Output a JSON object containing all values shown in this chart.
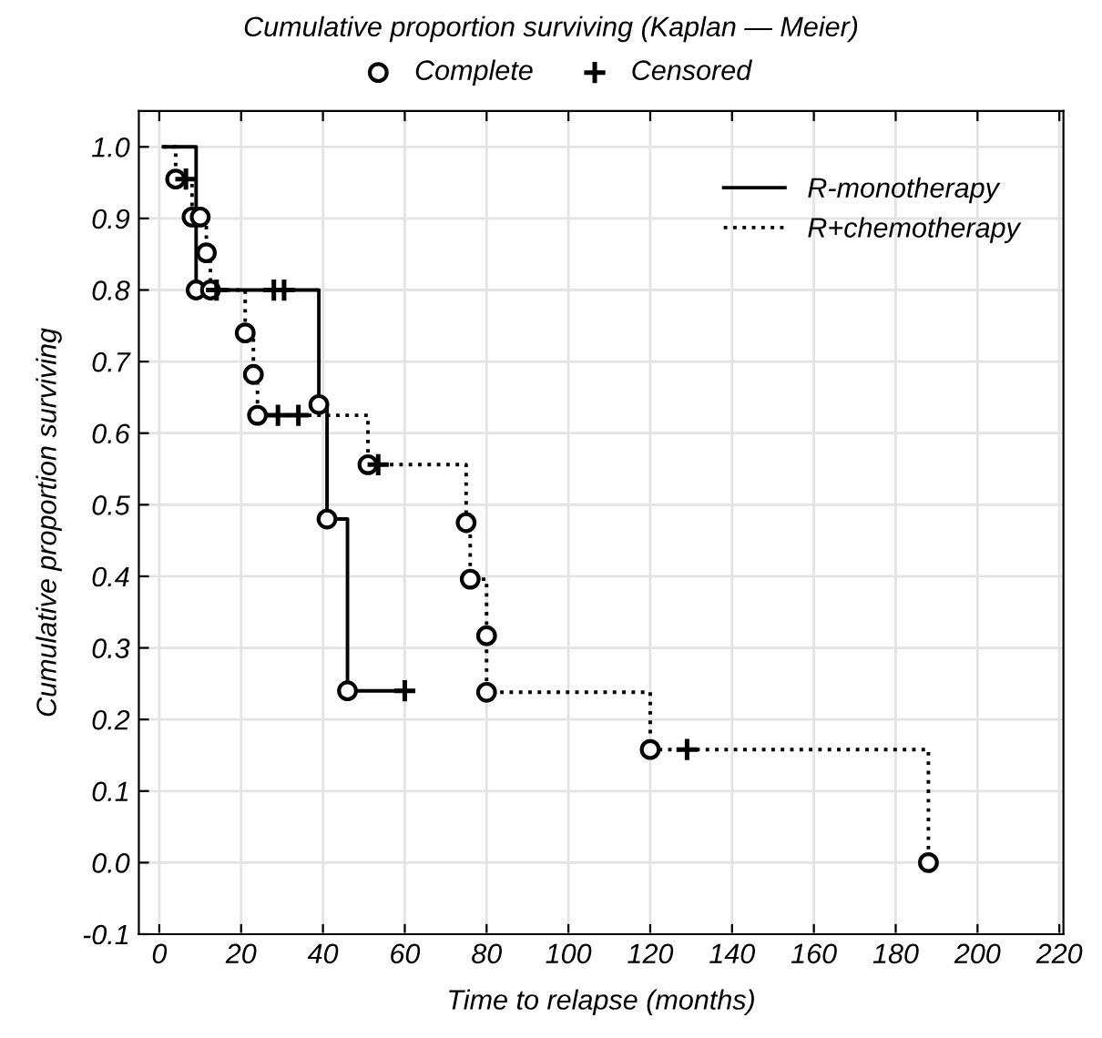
{
  "chart_data": {
    "type": "step",
    "title": "Cumulative proportion surviving (Kaplan — Meier)",
    "xlabel": "Time to relapse (months)",
    "ylabel": "Cumulative proportion surviving",
    "series": [
      {
        "name": "R-monotherapy",
        "color": "#000000",
        "line_style": "solid",
        "x": [
          1,
          9,
          39,
          41,
          46,
          60
        ],
        "values": [
          1.0,
          0.8,
          0.64,
          0.48,
          0.24,
          0.24
        ]
      },
      {
        "name": "R+chemotherapy",
        "color": "#000000",
        "line_style": "dotted",
        "x": [
          1,
          4,
          8,
          11.5,
          12.5,
          21,
          23,
          24,
          51,
          75,
          76,
          80,
          80,
          120,
          188
        ],
        "values": [
          1.0,
          0.955,
          0.902,
          0.852,
          0.8,
          0.74,
          0.682,
          0.625,
          0.556,
          0.475,
          0.396,
          0.317,
          0.238,
          0.158,
          0.0
        ]
      },
      {
        "name": "Complete",
        "type": "scatter",
        "marker": "circle",
        "color": "#000000",
        "x": [
          9,
          39,
          41,
          46,
          4,
          8,
          10,
          11.5,
          12.5,
          21,
          23,
          24,
          51,
          75,
          76,
          80,
          80,
          120,
          188
        ],
        "values": [
          0.8,
          0.64,
          0.48,
          0.24,
          0.955,
          0.902,
          0.902,
          0.852,
          0.8,
          0.74,
          0.682,
          0.625,
          0.556,
          0.475,
          0.396,
          0.317,
          0.238,
          0.158,
          0.0
        ]
      },
      {
        "name": "Censored",
        "type": "scatter",
        "marker": "cross",
        "color": "#000000",
        "x": [
          28,
          30.5,
          60,
          6.5,
          14,
          29,
          34,
          53.5,
          129
        ],
        "values": [
          0.8,
          0.8,
          0.24,
          0.955,
          0.8,
          0.625,
          0.625,
          0.556,
          0.158
        ]
      }
    ],
    "xlim": [
      -5,
      221
    ],
    "xticks": [
      0,
      20,
      40,
      60,
      80,
      100,
      120,
      140,
      160,
      180,
      200,
      220
    ],
    "ylim": [
      -0.1,
      1.05
    ],
    "yticks": [
      {
        "value": -0.1,
        "label": "-0.1"
      },
      {
        "value": 0,
        "label": "0.0"
      },
      0.1,
      0.2,
      0.3,
      0.4,
      0.5,
      0.6,
      0.7,
      0.8,
      0.9,
      {
        "value": 1,
        "label": "1.0"
      }
    ],
    "grid": true,
    "legend": "top right"
  }
}
